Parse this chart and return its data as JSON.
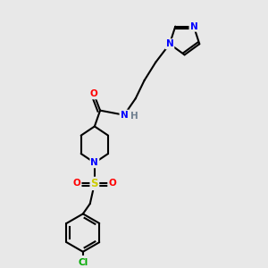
{
  "bg_color": "#e8e8e8",
  "bond_color": "#000000",
  "bond_width": 1.5,
  "atom_colors": {
    "N": "#0000ff",
    "O": "#ff0000",
    "S": "#cccc00",
    "Cl": "#00aa00",
    "H": "#708090",
    "C": "#000000"
  },
  "font_size": 7.5,
  "xlim": [
    0,
    10
  ],
  "ylim": [
    0,
    10
  ]
}
